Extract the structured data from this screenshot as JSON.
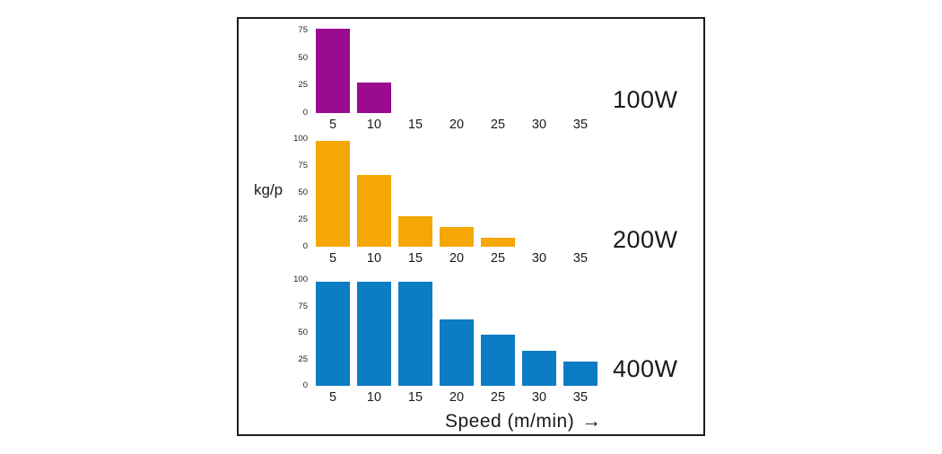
{
  "axis": {
    "y_label": "kg/p",
    "x_label": "Speed (m/min)",
    "x_arrow": "→"
  },
  "chart_data": {
    "type": "bar",
    "title": "",
    "xlabel": "Speed (m/min)",
    "ylabel": "kg/p",
    "x": [
      5,
      10,
      15,
      20,
      25,
      30,
      35
    ],
    "grid": false,
    "layout": "three stacked subplots inside one black-bordered frame, series name at right of each subplot",
    "frame_border_color": "#1c1c1c",
    "series": [
      {
        "name": "100W",
        "color": "#9B0B8F",
        "ylim": [
          0,
          75
        ],
        "y_ticks": [
          0,
          25,
          50,
          75
        ],
        "values": [
          77,
          28,
          null,
          null,
          null,
          null,
          null
        ]
      },
      {
        "name": "200W",
        "color": "#F5A705",
        "ylim": [
          0,
          100
        ],
        "y_ticks": [
          0,
          25,
          50,
          75,
          100
        ],
        "values": [
          98,
          67,
          28,
          18,
          8,
          null,
          null
        ]
      },
      {
        "name": "400W",
        "color": "#0C7CC4",
        "ylim": [
          0,
          100
        ],
        "y_ticks": [
          0,
          25,
          50,
          75,
          100
        ],
        "values": [
          98,
          98,
          98,
          63,
          48,
          33,
          23
        ]
      }
    ]
  }
}
